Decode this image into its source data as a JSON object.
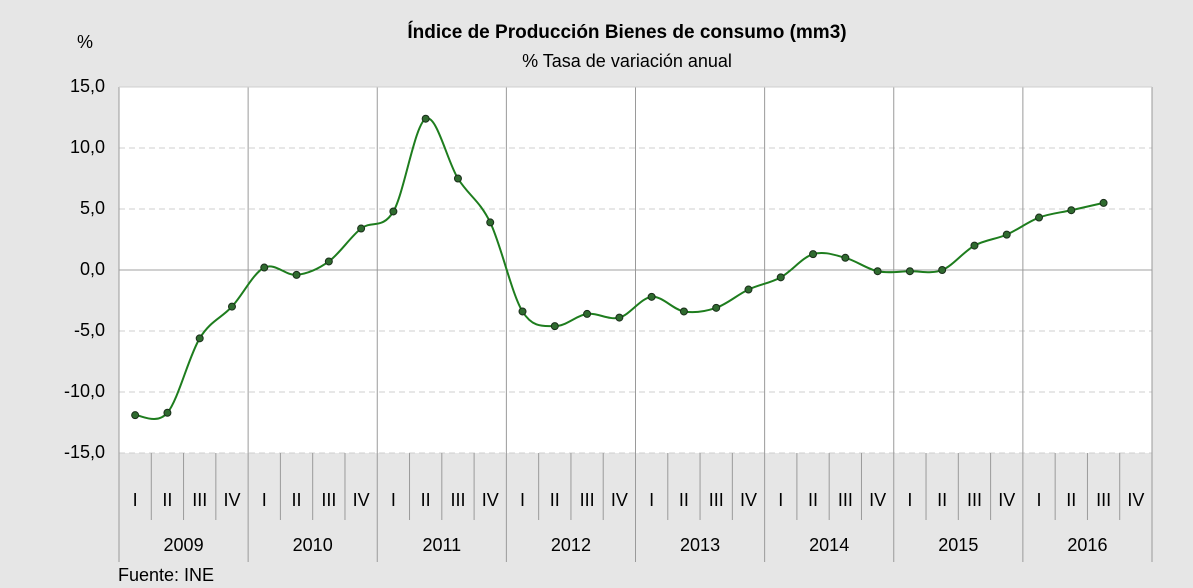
{
  "chart_data": {
    "type": "line",
    "title": "Índice de Producción Bienes de consumo (mm3)",
    "subtitle": "% Tasa de variación anual",
    "y_label": "%",
    "source": "Fuente: INE",
    "years": [
      "2009",
      "2010",
      "2011",
      "2012",
      "2013",
      "2014",
      "2015",
      "2016"
    ],
    "categories": [
      "I",
      "II",
      "III",
      "IV",
      "I",
      "II",
      "III",
      "IV",
      "I",
      "II",
      "III",
      "IV",
      "I",
      "II",
      "III",
      "IV",
      "I",
      "II",
      "III",
      "IV",
      "I",
      "II",
      "III",
      "IV",
      "I",
      "II",
      "III",
      "IV",
      "I",
      "II",
      "III",
      "IV"
    ],
    "series": [
      {
        "name": "Índice de Producción Bienes de consumo",
        "color": "#1e7d1e",
        "values": [
          -11.9,
          -11.7,
          -5.6,
          -3.0,
          0.2,
          -0.4,
          0.7,
          3.4,
          4.8,
          12.4,
          7.5,
          3.9,
          -3.4,
          -4.6,
          -3.6,
          -3.9,
          -2.2,
          -3.4,
          -3.1,
          -1.6,
          -0.6,
          1.3,
          1.0,
          -0.1,
          -0.1,
          0.0,
          2.0,
          2.9,
          4.3,
          4.9,
          5.5,
          null
        ]
      }
    ],
    "ylim": [
      -15,
      15
    ],
    "yticks": [
      {
        "value": -15,
        "label": "-15,0"
      },
      {
        "value": -10,
        "label": "-10,0"
      },
      {
        "value": -5,
        "label": "-5,0"
      },
      {
        "value": 0,
        "label": "0,0"
      },
      {
        "value": 5,
        "label": "5,0"
      },
      {
        "value": 10,
        "label": "10,0"
      },
      {
        "value": 15,
        "label": "15,0"
      }
    ],
    "grid": true
  }
}
